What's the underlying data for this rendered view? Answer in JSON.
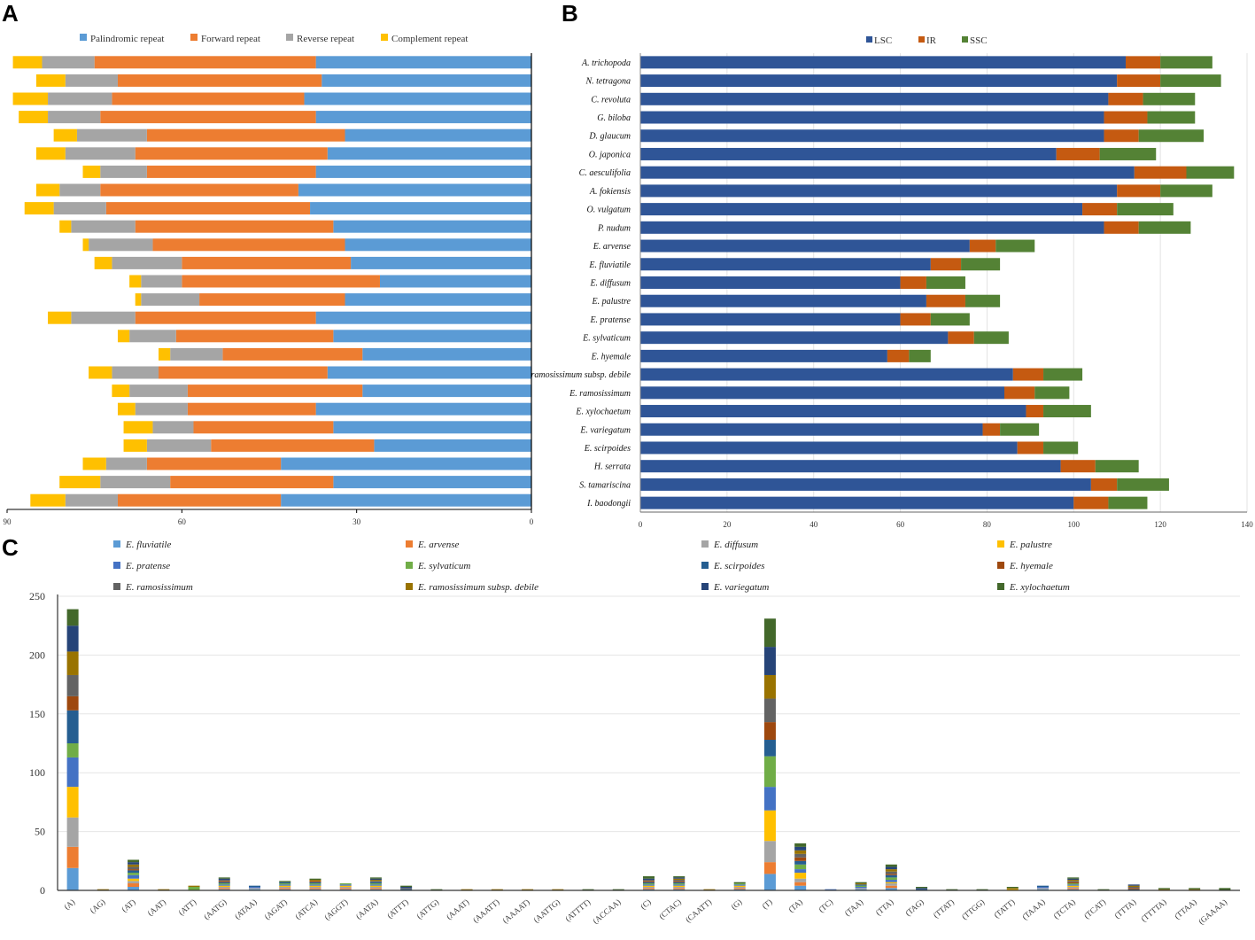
{
  "panels": {
    "a": "A",
    "b": "B",
    "c": "C"
  },
  "chart_data": [
    {
      "id": "A",
      "type": "bar",
      "orientation": "horizontal-stacked",
      "direction": "right-to-left",
      "legend": [
        "Palindromic repeat",
        "Forward repeat",
        "Reverse repeat",
        "Complement repeat"
      ],
      "colors": [
        "#5b9bd5",
        "#ed7d31",
        "#a5a5a5",
        "#ffc000"
      ],
      "xlim": [
        0,
        90
      ],
      "ticks": [
        "90",
        "60",
        "30",
        "0"
      ],
      "series": [
        {
          "name": "Palindromic repeat",
          "values": [
            37,
            36,
            39,
            37,
            32,
            35,
            37,
            40,
            38,
            34,
            32,
            31,
            26,
            32,
            37,
            34,
            29,
            35,
            29,
            37,
            34,
            27,
            43,
            34,
            43
          ]
        },
        {
          "name": "Forward repeat",
          "values": [
            38,
            35,
            33,
            37,
            34,
            33,
            29,
            34,
            35,
            34,
            33,
            29,
            34,
            25,
            31,
            27,
            24,
            29,
            30,
            22,
            24,
            28,
            23,
            28,
            28
          ]
        },
        {
          "name": "Reverse repeat",
          "values": [
            9,
            9,
            11,
            9,
            12,
            12,
            8,
            7,
            9,
            11,
            11,
            12,
            7,
            10,
            11,
            8,
            9,
            8,
            10,
            9,
            7,
            11,
            7,
            12,
            9
          ]
        },
        {
          "name": "Complement repeat",
          "values": [
            5,
            5,
            6,
            5,
            4,
            5,
            3,
            4,
            5,
            2,
            1,
            3,
            2,
            1,
            4,
            2,
            2,
            4,
            3,
            3,
            5,
            4,
            4,
            7,
            6
          ]
        }
      ]
    },
    {
      "id": "B",
      "type": "bar",
      "orientation": "horizontal-stacked",
      "legend": [
        "LSC",
        "IR",
        "SSC"
      ],
      "colors": [
        "#2f5597",
        "#c55a11",
        "#548235"
      ],
      "xlim": [
        0,
        140
      ],
      "ticks": [
        "0",
        "20",
        "40",
        "60",
        "80",
        "100",
        "120",
        "140"
      ],
      "categories": [
        "A. trichopoda",
        "N. tetragona",
        "C. revoluta",
        "G. biloba",
        "D. glaucum",
        "O. japonica",
        "C. aesculifolia",
        "A. fokiensis",
        "O. vulgatum",
        "P. nudum",
        "E. arvense",
        "E. fluviatile",
        "E. diffusum",
        "E. palustre",
        "E. pratense",
        "E. sylvaticum",
        "E. hyemale",
        "E. ramosissimum subsp. debile",
        "E. ramosissimum",
        "E. xylochaetum",
        "E. variegatum",
        "E. scirpoides",
        "H. serrata",
        "S. tamariscina",
        "I. baodongii"
      ],
      "series": [
        {
          "name": "LSC",
          "values": [
            112,
            110,
            108,
            107,
            107,
            96,
            114,
            110,
            102,
            107,
            76,
            67,
            60,
            66,
            60,
            71,
            57,
            86,
            84,
            89,
            79,
            87,
            97,
            104,
            100
          ]
        },
        {
          "name": "IR",
          "values": [
            8,
            10,
            8,
            10,
            8,
            10,
            12,
            10,
            8,
            8,
            6,
            7,
            6,
            9,
            7,
            6,
            5,
            7,
            7,
            4,
            4,
            6,
            8,
            6,
            8
          ]
        },
        {
          "name": "SSC",
          "values": [
            12,
            14,
            12,
            11,
            15,
            13,
            11,
            12,
            13,
            12,
            9,
            9,
            9,
            8,
            9,
            8,
            5,
            9,
            8,
            11,
            9,
            8,
            10,
            12,
            9
          ]
        }
      ]
    },
    {
      "id": "C",
      "type": "bar",
      "orientation": "vertical-stacked",
      "ylim": [
        0,
        250
      ],
      "yticks": [
        "0",
        "50",
        "100",
        "150",
        "200",
        "250"
      ],
      "categories": [
        "(A)",
        "(AG)",
        "(AT)",
        "(AAT)",
        "(ATT)",
        "(AATG)",
        "(ATAA)",
        "(AGAT)",
        "(ATCA)",
        "(AGGT)",
        "(AATA)",
        "(ATTT)",
        "(ATTG)",
        "(AAAT)",
        "(AAATT)",
        "(AAAAT)",
        "(AATTG)",
        "(ATTTT)",
        "(ACCAA)",
        "(C)",
        "(CTAC)",
        "(CAATT)",
        "(G)",
        "(T)",
        "(TA)",
        "(TC)",
        "(TAA)",
        "(TTA)",
        "(TAG)",
        "(TTAT)",
        "(TTGG)",
        "(TATT)",
        "(TAAA)",
        "(TCTA)",
        "(TCAT)",
        "(TTTA)",
        "(TTTTA)",
        "(TTAA)",
        "(GAAAA)"
      ],
      "series": [
        {
          "name": "E. fluviatile",
          "color": "#5b9bd5",
          "values": [
            19,
            0,
            3,
            0,
            0,
            1,
            1,
            1,
            1,
            1,
            1,
            0,
            0,
            0,
            0,
            0,
            0,
            0,
            0,
            1,
            1,
            0,
            1,
            14,
            4,
            0,
            1,
            2,
            0,
            0,
            0,
            0,
            1,
            1,
            0,
            0,
            0,
            0,
            0
          ]
        },
        {
          "name": "E. arvense",
          "color": "#ed7d31",
          "values": [
            18,
            0,
            3,
            0,
            0,
            1,
            0,
            1,
            1,
            1,
            1,
            0,
            0,
            0,
            0,
            0,
            0,
            0,
            0,
            1,
            1,
            0,
            1,
            10,
            3,
            0,
            0,
            2,
            0,
            0,
            0,
            0,
            0,
            1,
            0,
            0,
            0,
            0,
            0
          ]
        },
        {
          "name": "E. diffusum",
          "color": "#a5a5a5",
          "values": [
            25,
            0,
            2,
            0,
            0,
            1,
            1,
            1,
            1,
            1,
            1,
            0,
            0,
            0,
            0,
            0,
            0,
            0,
            0,
            1,
            1,
            0,
            1,
            18,
            3,
            0,
            1,
            2,
            0,
            0,
            0,
            0,
            1,
            1,
            0,
            0,
            0,
            0,
            0
          ]
        },
        {
          "name": "E. palustre",
          "color": "#ffc000",
          "values": [
            26,
            0,
            2,
            0,
            0,
            1,
            0,
            1,
            1,
            1,
            1,
            0,
            0,
            0,
            0,
            0,
            0,
            0,
            0,
            1,
            1,
            0,
            1,
            26,
            5,
            0,
            0,
            1,
            0,
            0,
            0,
            1,
            0,
            1,
            0,
            0,
            0,
            0,
            0
          ]
        },
        {
          "name": "E. pratense",
          "color": "#4472c4",
          "values": [
            25,
            0,
            3,
            0,
            0,
            1,
            1,
            1,
            1,
            1,
            1,
            0,
            0,
            0,
            0,
            0,
            0,
            0,
            0,
            1,
            1,
            0,
            1,
            20,
            3,
            1,
            1,
            2,
            0,
            0,
            0,
            0,
            1,
            1,
            0,
            0,
            0,
            0,
            0
          ]
        },
        {
          "name": "E. sylvaticum",
          "color": "#70ad47",
          "values": [
            12,
            0,
            2,
            0,
            3,
            1,
            0,
            1,
            1,
            1,
            1,
            0,
            0,
            0,
            0,
            0,
            0,
            0,
            0,
            1,
            1,
            0,
            1,
            26,
            4,
            0,
            1,
            2,
            0,
            0,
            0,
            0,
            0,
            1,
            0,
            0,
            0,
            0,
            0
          ]
        },
        {
          "name": "E. scirpoides",
          "color": "#255e91",
          "values": [
            28,
            0,
            2,
            0,
            0,
            1,
            1,
            1,
            1,
            0,
            1,
            1,
            0,
            0,
            0,
            0,
            0,
            0,
            0,
            1,
            1,
            0,
            0,
            14,
            3,
            0,
            1,
            2,
            1,
            0,
            0,
            0,
            1,
            0,
            0,
            1,
            0,
            0,
            0
          ]
        },
        {
          "name": "E. hyemale",
          "color": "#9e480e",
          "values": [
            12,
            0,
            1,
            0,
            0,
            1,
            0,
            0,
            1,
            0,
            0,
            0,
            0,
            0,
            0,
            0,
            0,
            0,
            0,
            1,
            1,
            0,
            0,
            15,
            3,
            0,
            0,
            1,
            0,
            0,
            0,
            0,
            0,
            1,
            0,
            1,
            0,
            0,
            0
          ]
        },
        {
          "name": "E. ramosissimum",
          "color": "#636363",
          "values": [
            18,
            0,
            2,
            0,
            0,
            1,
            0,
            0,
            0,
            0,
            1,
            1,
            0,
            0,
            0,
            0,
            0,
            0,
            0,
            1,
            1,
            0,
            0,
            20,
            3,
            0,
            0,
            2,
            0,
            0,
            0,
            0,
            0,
            1,
            0,
            1,
            0,
            0,
            0
          ]
        },
        {
          "name": "E. ramosissimum subsp. debile",
          "color": "#997300",
          "values": [
            20,
            1,
            2,
            1,
            1,
            0,
            0,
            0,
            1,
            0,
            1,
            0,
            0,
            1,
            1,
            1,
            1,
            0,
            0,
            0,
            1,
            1,
            0,
            20,
            3,
            0,
            1,
            2,
            0,
            0,
            0,
            1,
            0,
            1,
            0,
            1,
            1,
            1,
            0
          ]
        },
        {
          "name": "E. variegatum",
          "color": "#264478",
          "values": [
            22,
            0,
            2,
            0,
            0,
            1,
            0,
            0,
            0,
            0,
            1,
            1,
            0,
            0,
            0,
            0,
            0,
            0,
            0,
            1,
            1,
            0,
            0,
            24,
            3,
            0,
            0,
            2,
            1,
            0,
            0,
            0,
            0,
            1,
            0,
            1,
            0,
            0,
            0
          ]
        },
        {
          "name": "E. xylochaetum",
          "color": "#43682b",
          "values": [
            14,
            0,
            2,
            0,
            0,
            1,
            0,
            1,
            1,
            0,
            1,
            1,
            1,
            0,
            0,
            0,
            0,
            1,
            1,
            2,
            1,
            0,
            1,
            24,
            3,
            0,
            1,
            2,
            1,
            1,
            1,
            1,
            0,
            1,
            1,
            0,
            1,
            1,
            2
          ]
        }
      ]
    }
  ]
}
